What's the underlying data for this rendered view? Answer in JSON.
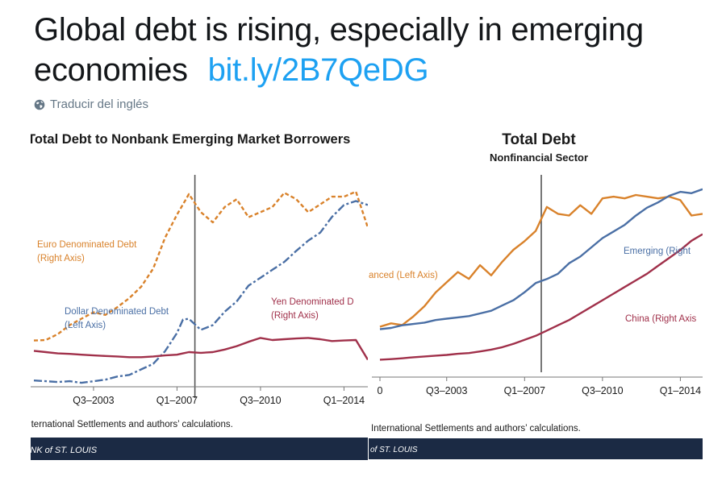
{
  "tweet": {
    "text": "Global debt is rising, especially in emerging economies",
    "link": "bit.ly/2B7QeDG",
    "translate_label": "Traducir del inglés"
  },
  "icons": {
    "translate": "globe-icon"
  },
  "colors": {
    "euro": "#d9822b",
    "dollar": "#4a6fa5",
    "yen": "#a0304a",
    "footer_bar": "#1b2a44",
    "link": "#1da1f2"
  },
  "charts": [
    {
      "title": "Total Debt to Nonbank Emerging Market Borrowers",
      "subtitle": "",
      "source": "r International Settlements and authors’ calculations.",
      "footer": "ANK of ST. LOUIS",
      "series_labels": [
        "Euro Denominated Debt",
        "(Right Axis)",
        "Dollar Denominated Debt",
        "(Left Axis)",
        "Yen Denominated D",
        "(Right Axis)"
      ],
      "x_ticks": [
        "Q3–2003",
        "Q1–2007",
        "Q3–2010",
        "Q1–2014"
      ]
    },
    {
      "title": "Total Debt",
      "subtitle": "Nonfinancial Sector",
      "source": "r International Settlements and authors’ calculations.",
      "footer": "of ST. LOUIS",
      "series_labels": [
        "anced (Left Axis)",
        "Emerging (Right",
        "China (Right Axis"
      ],
      "x_ticks": [
        "0",
        "Q3–2003",
        "Q1–2007",
        "Q3–2010",
        "Q1–2014"
      ]
    }
  ],
  "chart_data": [
    {
      "type": "line",
      "title": "Total Debt to Nonbank Emerging Market Borrowers",
      "x": [
        2001.0,
        2001.5,
        2002.0,
        2002.5,
        2003.0,
        2003.5,
        2004.0,
        2004.5,
        2005.0,
        2005.5,
        2006.0,
        2006.5,
        2007.0,
        2007.25,
        2007.5,
        2008.0,
        2008.5,
        2009.0,
        2009.5,
        2010.0,
        2010.5,
        2011.0,
        2011.5,
        2012.0,
        2012.5,
        2013.0,
        2013.5,
        2014.0,
        2014.5,
        2015.0
      ],
      "event_x": 2007.75,
      "series": [
        {
          "name": "Euro Denominated Debt",
          "axis": "right",
          "style": "dashed",
          "values": [
            18.0,
            18.2,
            20.5,
            24.0,
            26.5,
            29.0,
            28.0,
            31.0,
            34.5,
            39.0,
            46.0,
            58.0,
            67.0,
            71.0,
            75.0,
            68.0,
            64.0,
            70.0,
            73.0,
            66.0,
            68.0,
            70.0,
            75.5,
            73.0,
            68.0,
            71.0,
            74.0,
            74.0,
            76.0,
            62.0
          ]
        },
        {
          "name": "Dollar Denominated Debt",
          "axis": "left",
          "style": "dashdot",
          "values": [
            0.08,
            0.07,
            0.06,
            0.07,
            0.05,
            0.07,
            0.09,
            0.13,
            0.15,
            0.22,
            0.29,
            0.45,
            0.68,
            0.85,
            0.86,
            0.72,
            0.78,
            0.95,
            1.08,
            1.28,
            1.38,
            1.48,
            1.58,
            1.72,
            1.85,
            1.95,
            2.15,
            2.3,
            2.35,
            2.3
          ]
        },
        {
          "name": "Yen Denominated Debt",
          "axis": "right",
          "style": "solid",
          "values": [
            14.0,
            13.5,
            13.0,
            12.8,
            12.5,
            12.2,
            12.0,
            11.8,
            11.5,
            11.5,
            11.8,
            12.2,
            12.5,
            13.0,
            13.5,
            13.2,
            13.5,
            14.5,
            15.8,
            17.5,
            19.0,
            18.2,
            18.5,
            18.8,
            19.0,
            18.5,
            17.8,
            18.0,
            18.2,
            10.5
          ]
        }
      ]
    },
    {
      "type": "line",
      "title": "Total Debt",
      "subtitle": "Nonfinancial Sector",
      "x": [
        2000.5,
        2001.0,
        2001.5,
        2002.0,
        2002.5,
        2003.0,
        2003.5,
        2004.0,
        2004.5,
        2005.0,
        2005.5,
        2006.0,
        2006.5,
        2007.0,
        2007.5,
        2008.0,
        2008.5,
        2009.0,
        2009.5,
        2010.0,
        2010.5,
        2011.0,
        2011.5,
        2012.0,
        2012.5,
        2013.0,
        2013.5,
        2014.0,
        2014.5,
        2015.0
      ],
      "event_x": 2007.75,
      "series": [
        {
          "name": "Advanced (Left Axis)",
          "axis": "left",
          "style": "solid",
          "values": [
            120.0,
            122.0,
            121.0,
            126.0,
            132.0,
            140.0,
            146.0,
            152.0,
            148.0,
            156.0,
            150.0,
            158.0,
            165.0,
            170.0,
            176.0,
            190.0,
            186.0,
            185.0,
            191.0,
            186.0,
            195.0,
            196.0,
            195.0,
            197.0,
            196.0,
            195.0,
            196.0,
            194.0,
            185.0,
            186.0
          ]
        },
        {
          "name": "Emerging (Right Axis)",
          "axis": "right",
          "style": "solid",
          "values": [
            12.0,
            12.5,
            13.5,
            14.0,
            14.5,
            15.5,
            16.0,
            16.5,
            17.0,
            18.0,
            19.0,
            21.0,
            23.0,
            26.0,
            29.5,
            31.0,
            33.0,
            37.0,
            39.5,
            43.0,
            46.5,
            49.0,
            51.5,
            55.0,
            58.0,
            60.0,
            62.5,
            64.0,
            63.5,
            65.0
          ]
        },
        {
          "name": "China (Right Axis)",
          "axis": "right",
          "style": "solid",
          "values": [
            0.5,
            0.7,
            1.0,
            1.4,
            1.7,
            2.0,
            2.3,
            2.7,
            3.0,
            3.6,
            4.3,
            5.2,
            6.5,
            8.0,
            9.5,
            11.5,
            13.5,
            15.5,
            18.0,
            20.5,
            23.0,
            25.5,
            28.0,
            30.5,
            33.0,
            36.0,
            39.0,
            42.0,
            45.5,
            48.0
          ]
        }
      ]
    }
  ]
}
